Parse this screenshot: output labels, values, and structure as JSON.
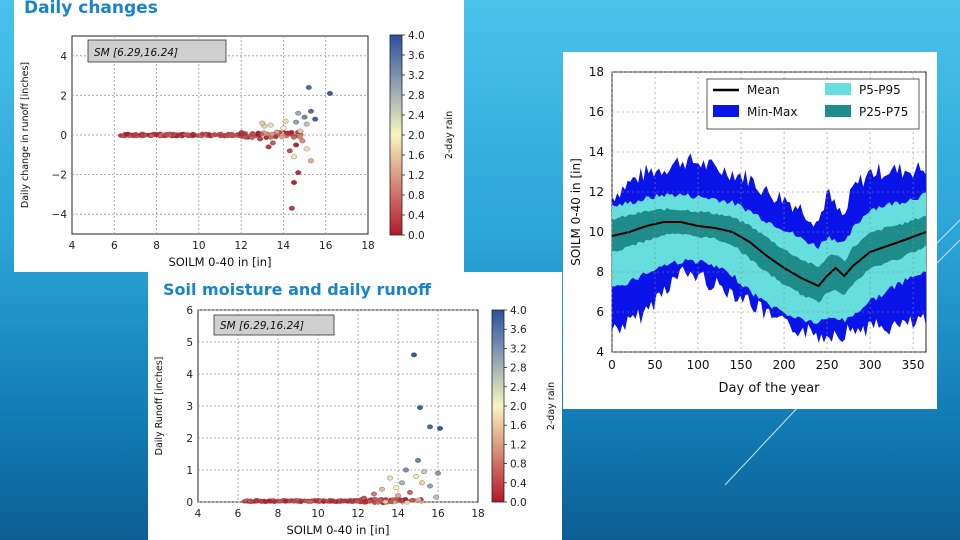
{
  "slide": {
    "colors": {
      "accent": "#1a84c8",
      "cmap_low": "#b2182b",
      "cmap_mid": "#f7f5c0",
      "cmap_high": "#2c4fa0"
    }
  },
  "chart_data": [
    {
      "type": "scatter",
      "title": "Daily changes",
      "annotation": "SM [6.29,16.24]",
      "xlabel": "SOILM 0-40 in [in]",
      "ylabel": "Daily change in runoff [inches]",
      "colorbar_label": "2-day rain",
      "xlim": [
        4,
        18
      ],
      "ylim": [
        -5,
        5
      ],
      "xticks": [
        "4",
        "6",
        "8",
        "10",
        "12",
        "14",
        "16",
        "18"
      ],
      "yticks": [
        "−4",
        "−2",
        "0",
        "2",
        "4"
      ],
      "colorbar_ticks": [
        "0.0",
        "0.4",
        "0.8",
        "1.2",
        "1.6",
        "2.0",
        "2.4",
        "2.8",
        "3.2",
        "3.6",
        "4.0"
      ],
      "grid": true,
      "points": [
        {
          "x": 13.1,
          "y": 0.45,
          "c": 2.3
        },
        {
          "x": 14.0,
          "y": 0.35,
          "c": 2.0
        },
        {
          "x": 14.6,
          "y": 0.65,
          "c": 3.0
        },
        {
          "x": 15.0,
          "y": 0.9,
          "c": 3.3
        },
        {
          "x": 15.3,
          "y": 1.2,
          "c": 3.6
        },
        {
          "x": 15.1,
          "y": 0.55,
          "c": 2.6
        },
        {
          "x": 14.8,
          "y": 0.2,
          "c": 1.6
        },
        {
          "x": 15.5,
          "y": 0.8,
          "c": 3.8
        },
        {
          "x": 16.2,
          "y": 2.1,
          "c": 3.9
        },
        {
          "x": 15.2,
          "y": 2.4,
          "c": 3.7
        },
        {
          "x": 14.7,
          "y": 1.1,
          "c": 2.9
        },
        {
          "x": 13.7,
          "y": 0.15,
          "c": 1.2
        },
        {
          "x": 14.9,
          "y": -0.3,
          "c": 1.1
        },
        {
          "x": 15.1,
          "y": -0.7,
          "c": 1.8
        },
        {
          "x": 13.5,
          "y": -0.4,
          "c": 0.6
        },
        {
          "x": 14.3,
          "y": -0.8,
          "c": 0.5
        },
        {
          "x": 14.5,
          "y": -1.1,
          "c": 1.9
        },
        {
          "x": 15.3,
          "y": -1.3,
          "c": 1.4
        },
        {
          "x": 14.7,
          "y": -1.9,
          "c": 0.2
        },
        {
          "x": 14.5,
          "y": -2.4,
          "c": 0.1
        },
        {
          "x": 14.4,
          "y": -3.7,
          "c": 0.3
        },
        {
          "x": 12.9,
          "y": -0.2,
          "c": 0.4
        },
        {
          "x": 12.2,
          "y": -0.1,
          "c": 0.5
        },
        {
          "x": 14.2,
          "y": 0.1,
          "c": 0.2
        },
        {
          "x": 13.3,
          "y": -0.6,
          "c": 0.3
        },
        {
          "x": 14.6,
          "y": -0.5,
          "c": 0.1
        },
        {
          "x": 13.0,
          "y": 0.6,
          "c": 1.6
        },
        {
          "x": 13.4,
          "y": 0.5,
          "c": 2.2
        },
        {
          "x": 14.1,
          "y": 0.7,
          "c": 1.8
        }
      ]
    },
    {
      "type": "area",
      "ylabel": "SOILM 0-40 in [in]",
      "xlabel": "Day of the year",
      "xlim": [
        0,
        365
      ],
      "ylim": [
        4,
        18
      ],
      "xticks": [
        "0",
        "50",
        "100",
        "150",
        "200",
        "250",
        "300",
        "350"
      ],
      "yticks": [
        "4",
        "6",
        "8",
        "10",
        "12",
        "14",
        "16",
        "18"
      ],
      "grid": true,
      "legend_position": "top",
      "days": [
        0,
        20,
        40,
        60,
        80,
        100,
        120,
        140,
        160,
        180,
        200,
        220,
        240,
        250,
        260,
        270,
        280,
        300,
        320,
        340,
        365
      ],
      "series": [
        {
          "name": "Mean",
          "color": "#000000",
          "values": [
            9.8,
            10.0,
            10.3,
            10.5,
            10.5,
            10.3,
            10.2,
            10.0,
            9.5,
            8.8,
            8.2,
            7.7,
            7.3,
            7.8,
            8.2,
            7.8,
            8.3,
            9.0,
            9.3,
            9.6,
            10.0
          ]
        },
        {
          "name": "Min-Max",
          "color": "#0a14e8",
          "low": [
            5.3,
            5.6,
            6.2,
            7.3,
            8.1,
            8.0,
            7.5,
            7.2,
            6.7,
            6.0,
            5.5,
            5.3,
            5.0,
            5.0,
            5.2,
            5.1,
            5.3,
            5.4,
            5.4,
            5.5,
            5.7
          ],
          "high": [
            11.6,
            12.3,
            12.8,
            13.0,
            13.4,
            13.3,
            13.0,
            12.8,
            12.5,
            11.8,
            11.5,
            11.0,
            10.3,
            11.8,
            11.0,
            10.5,
            12.0,
            12.8,
            12.9,
            12.9,
            13.0
          ]
        },
        {
          "name": "P5-P95",
          "color": "#66dede",
          "low": [
            7.2,
            7.6,
            8.0,
            8.4,
            8.6,
            8.6,
            8.3,
            7.9,
            7.1,
            6.5,
            6.0,
            5.7,
            5.5,
            5.7,
            5.8,
            5.6,
            5.9,
            6.6,
            7.1,
            7.6,
            8.1
          ],
          "high": [
            11.2,
            11.4,
            11.6,
            11.8,
            11.8,
            11.7,
            11.6,
            11.4,
            11.0,
            10.5,
            10.1,
            9.6,
            9.2,
            9.7,
            9.6,
            9.3,
            10.1,
            11.1,
            11.3,
            11.5,
            11.8
          ]
        },
        {
          "name": "P25-P75",
          "color": "#1f8c8c",
          "low": [
            9.0,
            9.3,
            9.6,
            9.9,
            9.9,
            9.8,
            9.7,
            9.4,
            8.7,
            8.0,
            7.4,
            6.9,
            6.5,
            7.0,
            7.2,
            6.9,
            7.4,
            8.2,
            8.5,
            8.8,
            9.3
          ],
          "high": [
            10.6,
            10.8,
            11.0,
            11.1,
            11.1,
            11.0,
            10.9,
            10.7,
            10.3,
            9.7,
            9.1,
            8.6,
            8.2,
            8.7,
            8.9,
            8.5,
            9.2,
            9.9,
            10.2,
            10.4,
            10.8
          ]
        }
      ]
    },
    {
      "type": "scatter",
      "title": "Soil moisture and daily runoff",
      "annotation": "SM [6.29,16.24]",
      "xlabel": "SOILM 0-40 in [in]",
      "ylabel": "Daily Runoff [inches]",
      "colorbar_label": "2-day rain",
      "xlim": [
        4,
        18
      ],
      "ylim": [
        0,
        6
      ],
      "xticks": [
        "4",
        "6",
        "8",
        "10",
        "12",
        "14",
        "16",
        "18"
      ],
      "yticks": [
        "0",
        "1",
        "2",
        "3",
        "4",
        "5",
        "6"
      ],
      "colorbar_ticks": [
        "0.0",
        "0.4",
        "0.8",
        "1.2",
        "1.6",
        "2.0",
        "2.4",
        "2.8",
        "3.2",
        "3.6",
        "4.0"
      ],
      "grid": true,
      "points": [
        {
          "x": 14.8,
          "y": 4.6,
          "c": 3.9
        },
        {
          "x": 15.1,
          "y": 2.95,
          "c": 3.8
        },
        {
          "x": 16.1,
          "y": 2.3,
          "c": 3.9
        },
        {
          "x": 15.6,
          "y": 2.35,
          "c": 3.7
        },
        {
          "x": 14.4,
          "y": 1.0,
          "c": 3.2
        },
        {
          "x": 15.0,
          "y": 1.3,
          "c": 3.4
        },
        {
          "x": 13.6,
          "y": 0.75,
          "c": 2.2
        },
        {
          "x": 14.2,
          "y": 0.6,
          "c": 2.8
        },
        {
          "x": 15.3,
          "y": 0.95,
          "c": 2.5
        },
        {
          "x": 15.6,
          "y": 0.5,
          "c": 3.0
        },
        {
          "x": 16.0,
          "y": 0.9,
          "c": 3.1
        },
        {
          "x": 14.9,
          "y": 0.8,
          "c": 1.9
        },
        {
          "x": 13.2,
          "y": 0.4,
          "c": 1.5
        },
        {
          "x": 12.8,
          "y": 0.25,
          "c": 0.9
        },
        {
          "x": 14.6,
          "y": 0.3,
          "c": 0.7
        },
        {
          "x": 15.9,
          "y": 0.15,
          "c": 2.6
        },
        {
          "x": 14.0,
          "y": 0.2,
          "c": 1.3
        },
        {
          "x": 13.9,
          "y": 0.45,
          "c": 2.0
        },
        {
          "x": 15.2,
          "y": 0.6,
          "c": 1.7
        },
        {
          "x": 12.3,
          "y": 0.12,
          "c": 0.5
        }
      ]
    }
  ]
}
